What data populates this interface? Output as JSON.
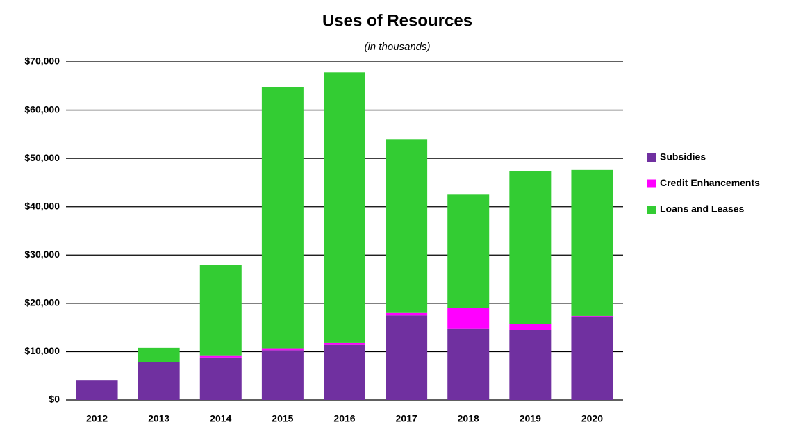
{
  "chart_data": {
    "type": "stacked_bar",
    "title": "Uses of Resources",
    "subtitle": "(in thousands)",
    "categories": [
      "2012",
      "2013",
      "2014",
      "2015",
      "2016",
      "2017",
      "2018",
      "2019",
      "2020"
    ],
    "series": [
      {
        "name": "Subsidies",
        "color": "#7030a0",
        "values": [
          4000,
          7900,
          8800,
          10300,
          11400,
          17500,
          14700,
          14500,
          17300
        ]
      },
      {
        "name": "Credit Enhancements",
        "color": "#ff00ff",
        "values": [
          0,
          0,
          300,
          400,
          400,
          500,
          4400,
          1300,
          100
        ]
      },
      {
        "name": "Loans and Leases",
        "color": "#33cc33",
        "values": [
          0,
          2900,
          18900,
          54100,
          56000,
          36000,
          23400,
          31500,
          30200
        ]
      }
    ],
    "ylim": [
      0,
      70000
    ],
    "yticks": [
      {
        "value": 0,
        "label": "$0"
      },
      {
        "value": 10000,
        "label": "$10,000"
      },
      {
        "value": 20000,
        "label": "$20,000"
      },
      {
        "value": 30000,
        "label": "$30,000"
      },
      {
        "value": 40000,
        "label": "$40,000"
      },
      {
        "value": 50000,
        "label": "$50,000"
      },
      {
        "value": 60000,
        "label": "$60,000"
      },
      {
        "value": 70000,
        "label": "$70,000"
      }
    ],
    "grid": true,
    "legend": "right"
  }
}
